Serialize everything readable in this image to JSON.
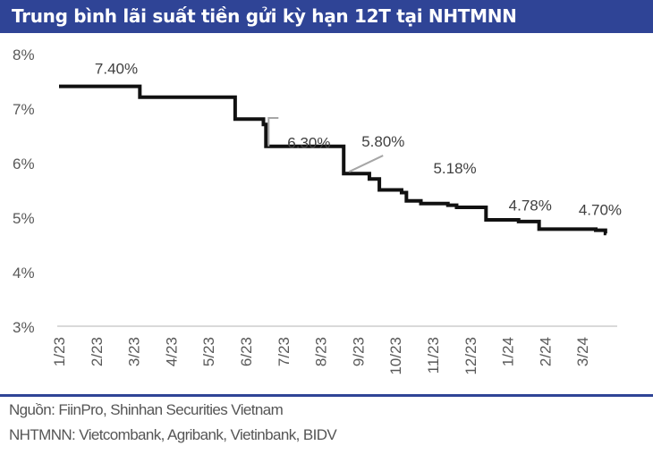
{
  "chart_data": {
    "type": "line",
    "title": "Trung bình lãi suất tiền gửi kỳ hạn 12T tại NHTMNN",
    "xlabel": "",
    "ylabel": "",
    "ylim": [
      3,
      8
    ],
    "y_ticks": [
      "8%",
      "7%",
      "6%",
      "5%",
      "4%",
      "3%"
    ],
    "y_tick_values": [
      8,
      7,
      6,
      5,
      4,
      3
    ],
    "x_ticks": [
      "1/23",
      "2/23",
      "3/23",
      "4/23",
      "5/23",
      "6/23",
      "7/23",
      "8/23",
      "9/23",
      "10/23",
      "11/23",
      "12/23",
      "1/24",
      "2/24",
      "3/24"
    ],
    "step": true,
    "grid": false,
    "line_color": "#111111",
    "series": [
      {
        "points": [
          [
            "2023-01-01",
            7.4
          ],
          [
            "2023-03-06",
            7.2
          ],
          [
            "2023-05-23",
            6.8
          ],
          [
            "2023-06-15",
            6.7
          ],
          [
            "2023-06-17",
            6.3
          ],
          [
            "2023-08-20",
            5.8
          ],
          [
            "2023-09-10",
            5.7
          ],
          [
            "2023-09-18",
            5.5
          ],
          [
            "2023-10-06",
            5.45
          ],
          [
            "2023-10-10",
            5.3
          ],
          [
            "2023-10-22",
            5.25
          ],
          [
            "2023-11-13",
            5.22
          ],
          [
            "2023-11-20",
            5.18
          ],
          [
            "2023-12-14",
            4.95
          ],
          [
            "2024-01-10",
            4.92
          ],
          [
            "2024-01-27",
            4.78
          ],
          [
            "2024-03-12",
            4.76
          ],
          [
            "2024-03-20",
            4.7
          ]
        ]
      }
    ],
    "annotations": [
      {
        "text": "7.40%",
        "date": "2023-01-01",
        "value": 7.4
      },
      {
        "text": "6.30%",
        "date": "2023-06-17",
        "value": 6.3
      },
      {
        "text": "5.80%",
        "date": "2023-08-20",
        "value": 5.8
      },
      {
        "text": "5.18%",
        "date": "2023-11-20",
        "value": 5.18
      },
      {
        "text": "4.78%",
        "date": "2024-01-27",
        "value": 4.78
      },
      {
        "text": "4.70%",
        "date": "2024-03-20",
        "value": 4.7
      }
    ]
  },
  "footer": {
    "source": "Nguồn: FiinPro, Shinhan Securities Vietnam",
    "note": "NHTMNN: Vietcombank, Agribank, Vietinbank, BIDV"
  },
  "colors": {
    "title_bar": "#2f4496",
    "axis": "#d9d9d9",
    "leader": "#a6a6a6",
    "text": "#595959"
  }
}
